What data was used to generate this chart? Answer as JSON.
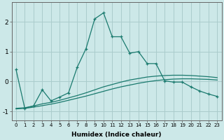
{
  "xlabel": "Humidex (Indice chaleur)",
  "background_color": "#cce8e8",
  "grid_color": "#aacccc",
  "line_color": "#1a7a6e",
  "x_values": [
    0,
    1,
    2,
    3,
    4,
    5,
    6,
    7,
    8,
    9,
    10,
    11,
    12,
    13,
    14,
    15,
    16,
    17,
    18,
    19,
    20,
    21,
    22,
    23
  ],
  "line_marked": [
    0.4,
    -0.9,
    -0.82,
    -0.28,
    -0.65,
    -0.52,
    -0.38,
    0.48,
    1.1,
    2.1,
    2.3,
    1.5,
    1.5,
    0.95,
    1.0,
    0.6,
    0.6,
    0.02,
    -0.02,
    -0.02,
    -0.18,
    -0.32,
    -0.42,
    -0.5
  ],
  "line_smooth1": [
    -0.9,
    -0.88,
    -0.82,
    -0.75,
    -0.7,
    -0.63,
    -0.55,
    -0.47,
    -0.38,
    -0.28,
    -0.18,
    -0.1,
    -0.02,
    0.05,
    0.1,
    0.15,
    0.18,
    0.2,
    0.21,
    0.21,
    0.2,
    0.18,
    0.16,
    0.13
  ],
  "line_smooth2": [
    -0.92,
    -0.9,
    -0.86,
    -0.81,
    -0.76,
    -0.7,
    -0.63,
    -0.56,
    -0.49,
    -0.41,
    -0.33,
    -0.25,
    -0.18,
    -0.12,
    -0.06,
    -0.01,
    0.03,
    0.06,
    0.08,
    0.09,
    0.09,
    0.08,
    0.07,
    0.05
  ],
  "ylim": [
    -1.3,
    2.65
  ],
  "xlim": [
    -0.5,
    23.5
  ],
  "yticks": [
    -1,
    0,
    1,
    2
  ],
  "xticks": [
    0,
    1,
    2,
    3,
    4,
    5,
    6,
    7,
    8,
    9,
    10,
    11,
    12,
    13,
    14,
    15,
    16,
    17,
    18,
    19,
    20,
    21,
    22,
    23
  ],
  "xtick_fontsize": 5.0,
  "ytick_fontsize": 6.5,
  "xlabel_fontsize": 6.5,
  "figwidth": 3.2,
  "figheight": 2.0,
  "dpi": 100
}
